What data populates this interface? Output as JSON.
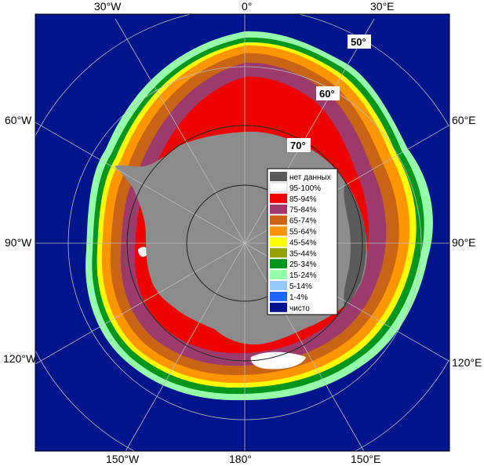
{
  "map": {
    "longitude_labels": {
      "top": [
        "30°W",
        "0°",
        "30°E"
      ],
      "bottom": [
        "150°W",
        "180°",
        "150°E"
      ],
      "left": [
        "60°W",
        "90°W",
        "120°W"
      ],
      "right": [
        "60°E",
        "90°E",
        "120°E"
      ]
    },
    "latitude_labels": [
      "50°",
      "60°",
      "70°"
    ],
    "colors": {
      "ocean": "#00158c",
      "land": "#8c8c8c",
      "no_data": "#5a5a5a",
      "graticule": "#bdbdbd",
      "frame": "#000000"
    }
  },
  "legend": {
    "items": [
      {
        "label": "нет данных",
        "color": "#5a5a5a"
      },
      {
        "label": "95-100%",
        "color": "#ffffff"
      },
      {
        "label": "85-94%",
        "color": "#f00000"
      },
      {
        "label": "75-84%",
        "color": "#9c3a6c"
      },
      {
        "label": "65-74%",
        "color": "#c86414"
      },
      {
        "label": "55-64%",
        "color": "#ff9600"
      },
      {
        "label": "45-54%",
        "color": "#ffff00"
      },
      {
        "label": "35-44%",
        "color": "#96a000"
      },
      {
        "label": "25-34%",
        "color": "#00961e"
      },
      {
        "label": "15-24%",
        "color": "#96ffaa"
      },
      {
        "label": "5-14%",
        "color": "#96c8ff"
      },
      {
        "label": "1-4%",
        "color": "#1e64ff"
      },
      {
        "label": "чисто",
        "color": "#00158c"
      }
    ]
  }
}
